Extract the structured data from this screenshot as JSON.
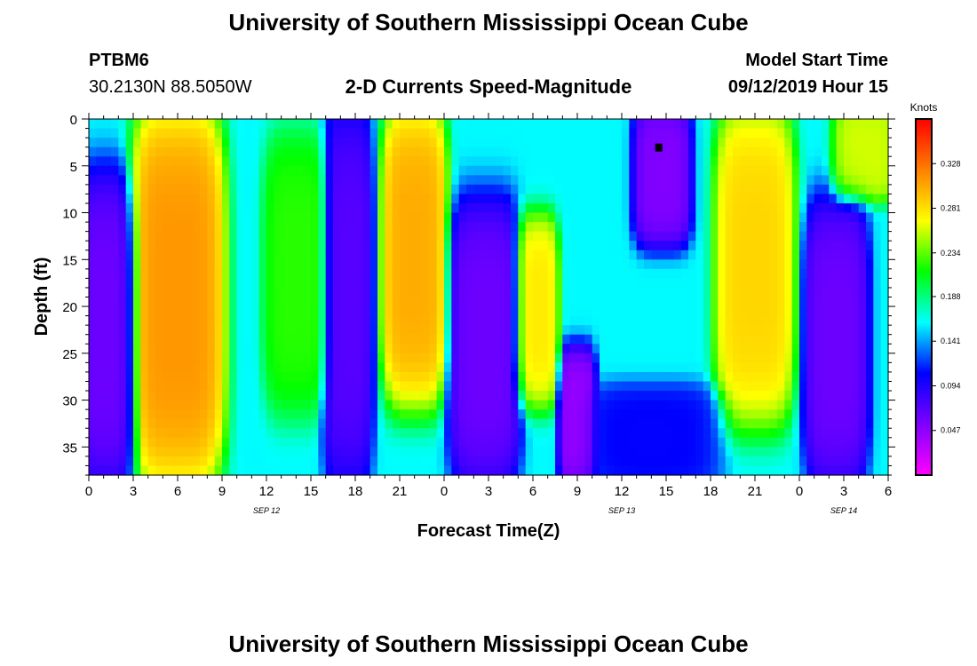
{
  "header": {
    "title_top": "University of Southern Mississippi Ocean Cube",
    "title_bottom": "University of Southern Mississippi Ocean Cube",
    "station": "PTBM6",
    "location": "30.2130N 88.5050W",
    "plot_title": "2-D Currents Speed-Magnitude",
    "model_label": "Model Start Time",
    "model_time": "09/12/2019 Hour 15"
  },
  "chart_data": {
    "type": "heatmap",
    "xlabel": "Forecast Time(Z)",
    "ylabel": "Depth (ft)",
    "x_ticks": [
      "0",
      "3",
      "6",
      "9",
      "12",
      "15",
      "18",
      "21",
      "0",
      "3",
      "6",
      "9",
      "12",
      "15",
      "18",
      "21",
      "0",
      "3",
      "6"
    ],
    "x_range_hours": [
      0,
      54
    ],
    "date_labels": [
      {
        "text": "SEP 12",
        "hour": 12
      },
      {
        "text": "SEP 13",
        "hour": 36
      },
      {
        "text": "SEP 14",
        "hour": 51
      }
    ],
    "y_ticks": [
      0,
      5,
      10,
      15,
      20,
      25,
      30,
      35
    ],
    "ylim": [
      0,
      38
    ],
    "y_inverted": true,
    "colorbar": {
      "title": "Knots",
      "ticks": [
        "0.328",
        "0.281",
        "0.234",
        "0.188",
        "0.141",
        "0.094",
        "0.047"
      ],
      "tick_values": [
        0.328,
        0.281,
        0.234,
        0.188,
        0.141,
        0.094,
        0.047
      ],
      "range": [
        0.0,
        0.375
      ],
      "colors": [
        "#ff00ff",
        "#7f00ff",
        "#0000ff",
        "#00ffff",
        "#00ff00",
        "#ffff00",
        "#ff8000",
        "#ff0000"
      ]
    },
    "marker": {
      "hour": 38.5,
      "depth": 3
    },
    "features": [
      {
        "h0": 0,
        "h1": 2.5,
        "d0": 7,
        "d1": 38,
        "value": 0.05
      },
      {
        "h0": 3.5,
        "h1": 8.5,
        "d0": 0,
        "d1": 38,
        "value": 0.33
      },
      {
        "h0": 12.5,
        "h1": 15.5,
        "d0": 3,
        "d1": 30,
        "value": 0.23
      },
      {
        "h0": 16.5,
        "h1": 18.5,
        "d0": 0,
        "d1": 38,
        "value": 0.06
      },
      {
        "h0": 20.5,
        "h1": 23.5,
        "d0": 0,
        "d1": 29,
        "value": 0.32
      },
      {
        "h0": 25,
        "h1": 28.5,
        "d0": 10,
        "d1": 38,
        "value": 0.05
      },
      {
        "h0": 29.5,
        "h1": 31,
        "d0": 12,
        "d1": 29,
        "value": 0.29
      },
      {
        "h0": 32.5,
        "h1": 33.5,
        "d0": 26,
        "d1": 38,
        "value": 0.03
      },
      {
        "h0": 37.5,
        "h1": 40,
        "d0": 0,
        "d1": 12,
        "value": 0.04
      },
      {
        "h0": 34,
        "h1": 42,
        "d0": 30,
        "d1": 38,
        "value": 0.1
      },
      {
        "h0": 43,
        "h1": 47,
        "d0": 0,
        "d1": 31,
        "value": 0.3
      },
      {
        "h0": 49,
        "h1": 52,
        "d0": 10,
        "d1": 38,
        "value": 0.05
      },
      {
        "h0": 51,
        "h1": 54,
        "d0": 0,
        "d1": 7,
        "value": 0.27
      }
    ]
  }
}
